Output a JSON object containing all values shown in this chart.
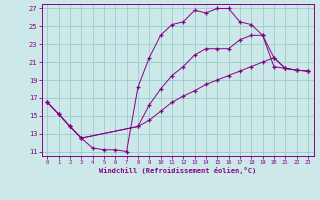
{
  "xlabel": "Windchill (Refroidissement éolien,°C)",
  "background_color": "#cce8e8",
  "line_color": "#880088",
  "grid_color": "#99cccc",
  "xlim": [
    -0.5,
    23.5
  ],
  "ylim": [
    10.5,
    27.5
  ],
  "xticks": [
    0,
    1,
    2,
    3,
    4,
    5,
    6,
    7,
    8,
    9,
    10,
    11,
    12,
    13,
    14,
    15,
    16,
    17,
    18,
    19,
    20,
    21,
    22,
    23
  ],
  "yticks": [
    11,
    13,
    15,
    17,
    19,
    21,
    23,
    25,
    27
  ],
  "series1_x": [
    0,
    1,
    2,
    3,
    4,
    5,
    6,
    7,
    8,
    9,
    10,
    11,
    12,
    13,
    14,
    15,
    16,
    17,
    18,
    19,
    20,
    21,
    22,
    23
  ],
  "series1_y": [
    16.5,
    15.2,
    13.8,
    12.5,
    11.4,
    11.2,
    11.2,
    11.0,
    18.2,
    21.5,
    24.0,
    25.2,
    25.5,
    26.8,
    26.5,
    27.0,
    27.0,
    25.5,
    25.2,
    24.0,
    20.5,
    20.3,
    20.1,
    20.0
  ],
  "series2_x": [
    0,
    1,
    2,
    3,
    8,
    9,
    10,
    11,
    12,
    13,
    14,
    15,
    16,
    17,
    18,
    19,
    20,
    21,
    22,
    23
  ],
  "series2_y": [
    16.5,
    15.2,
    13.8,
    12.5,
    13.8,
    16.2,
    18.0,
    19.5,
    20.5,
    21.8,
    22.5,
    22.5,
    22.5,
    23.5,
    24.0,
    24.0,
    21.5,
    20.3,
    20.1,
    20.0
  ],
  "series3_x": [
    0,
    1,
    2,
    3,
    8,
    9,
    10,
    11,
    12,
    13,
    14,
    15,
    16,
    17,
    18,
    19,
    20,
    21,
    22,
    23
  ],
  "series3_y": [
    16.5,
    15.2,
    13.8,
    12.5,
    13.8,
    14.5,
    15.5,
    16.5,
    17.2,
    17.8,
    18.5,
    19.0,
    19.5,
    20.0,
    20.5,
    21.0,
    21.5,
    20.3,
    20.1,
    20.0
  ]
}
